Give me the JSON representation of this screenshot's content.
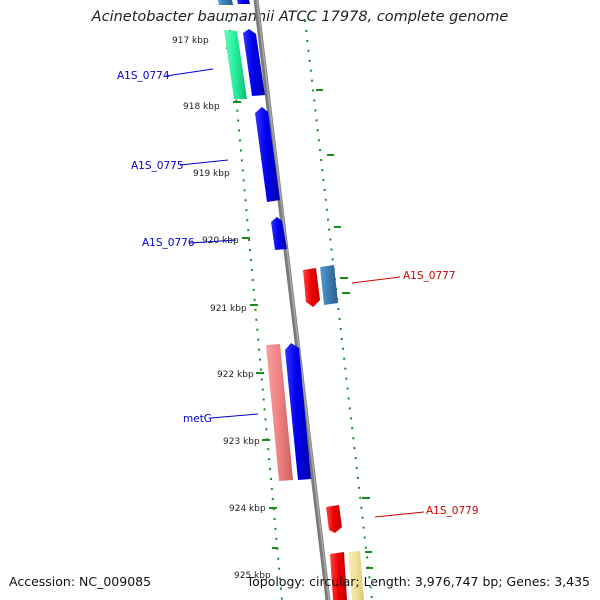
{
  "header": {
    "title": "Acinetobacter baumannii ATCC 17978, complete genome"
  },
  "footer": {
    "accession": "Accession: NC_009085",
    "stats": "Topology: circular; Length: 3,976,747 bp; Genes: 3,435"
  },
  "ticks": [
    "917 kbp",
    "918 kbp",
    "919 kbp",
    "920 kbp",
    "921 kbp",
    "922 kbp",
    "923 kbp",
    "924 kbp",
    "925 kbp"
  ],
  "labels": {
    "A1S_0774": "A1S_0774",
    "A1S_0775": "A1S_0775",
    "A1S_0776": "A1S_0776",
    "A1S_0777": "A1S_0777",
    "metG": "metG",
    "A1S_0779": "A1S_0779"
  },
  "colors": {
    "forward_label": "#0000cc",
    "reverse_label": "#cc0000",
    "backbone": "#888888",
    "gc_dots": "#1a8a1a",
    "blue_gene": "#0000ff",
    "red_gene": "#ff0000",
    "teal_gene": "#3a7ab0",
    "green_gene": "#22ee99",
    "pink_gene": "#f08080",
    "yellow_gene": "#f0e29a"
  }
}
